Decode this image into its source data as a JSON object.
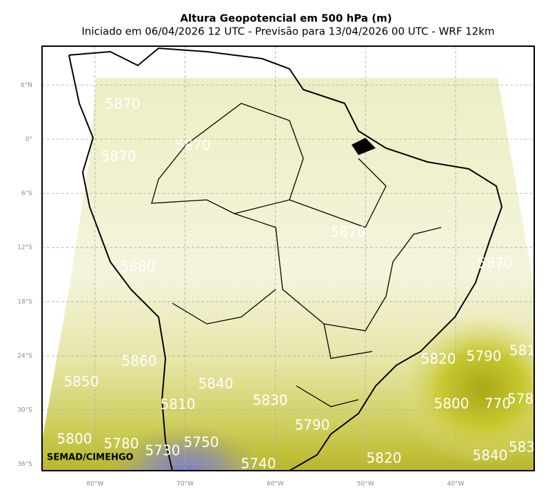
{
  "map": {
    "title": "Altura Geopotencial em 500 hPa (m)",
    "subtitle": "Iniciado em 06/04/2026 12 UTC - Previsão para 13/04/2026 00 UTC - WRF 12km",
    "credit": "SEMAD/CIMEHGO",
    "yticks": [
      {
        "value": 6,
        "label": "6°N"
      },
      {
        "value": 0,
        "label": "0°"
      },
      {
        "value": -6,
        "label": "6°S"
      },
      {
        "value": -12,
        "label": "12°S"
      },
      {
        "value": -18,
        "label": "18°S"
      },
      {
        "value": -24,
        "label": "24°S"
      },
      {
        "value": -30,
        "label": "30°S"
      },
      {
        "value": -36,
        "label": "36°S"
      }
    ],
    "xticks": [
      {
        "value": -80,
        "label": "80°W"
      },
      {
        "value": -70,
        "label": "70°W"
      },
      {
        "value": -60,
        "label": "60°W"
      },
      {
        "value": -50,
        "label": "50°W"
      },
      {
        "value": -40,
        "label": "40°W"
      }
    ],
    "contour_labels": [
      "5870",
      "5870",
      "5870",
      "5870",
      "5870",
      "5880",
      "5860",
      "5850",
      "5840",
      "5810",
      "5830",
      "5820",
      "5790",
      "581",
      "5800",
      "770",
      "578",
      "5790",
      "5800",
      "5780",
      "5730",
      "5750",
      "5740",
      "5820",
      "5840",
      "583"
    ]
  }
}
